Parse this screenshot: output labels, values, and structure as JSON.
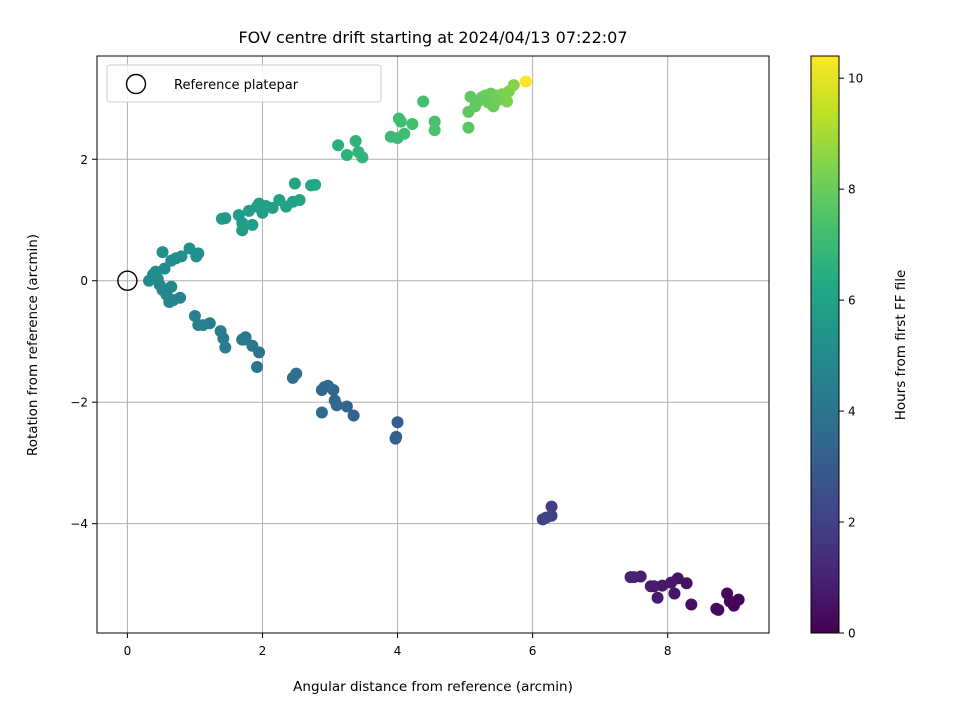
{
  "chart_data": {
    "type": "scatter",
    "title": "FOV centre drift starting at 2024/04/13 07:22:07",
    "xlabel": "Angular distance from reference (arcmin)",
    "ylabel": "Rotation from reference (arcmin)",
    "xlim": [
      -0.45,
      9.5
    ],
    "ylim": [
      -5.8,
      3.7
    ],
    "xticks": [
      0,
      2,
      4,
      6,
      8
    ],
    "yticks": [
      -4,
      -2,
      0,
      2
    ],
    "grid": true,
    "legend": {
      "label": "Reference platepar",
      "placement": "top-left"
    },
    "reference_point": {
      "x": 0,
      "y": 0
    },
    "colorbar": {
      "label": "Hours from first FF file",
      "colormap": "viridis",
      "range": [
        0,
        10.4
      ],
      "ticks": [
        0,
        2,
        4,
        6,
        8,
        10
      ]
    },
    "points": [
      {
        "x": 9.05,
        "y": -5.25,
        "c": 0.05
      },
      {
        "x": 8.98,
        "y": -5.35,
        "c": 0.1
      },
      {
        "x": 8.92,
        "y": -5.28,
        "c": 0.15
      },
      {
        "x": 8.88,
        "y": -5.15,
        "c": 0.2
      },
      {
        "x": 8.75,
        "y": -5.42,
        "c": 0.25
      },
      {
        "x": 8.72,
        "y": -5.4,
        "c": 0.3
      },
      {
        "x": 8.35,
        "y": -5.33,
        "c": 0.4
      },
      {
        "x": 8.28,
        "y": -4.98,
        "c": 0.5
      },
      {
        "x": 8.15,
        "y": -4.9,
        "c": 0.55
      },
      {
        "x": 8.1,
        "y": -5.15,
        "c": 0.6
      },
      {
        "x": 8.05,
        "y": -4.97,
        "c": 0.65
      },
      {
        "x": 7.92,
        "y": -5.02,
        "c": 0.7
      },
      {
        "x": 7.85,
        "y": -5.22,
        "c": 0.75
      },
      {
        "x": 7.8,
        "y": -5.03,
        "c": 0.8
      },
      {
        "x": 7.75,
        "y": -5.03,
        "c": 0.85
      },
      {
        "x": 7.6,
        "y": -4.87,
        "c": 0.9
      },
      {
        "x": 7.5,
        "y": -4.88,
        "c": 0.95
      },
      {
        "x": 7.45,
        "y": -4.88,
        "c": 1.0
      },
      {
        "x": 6.28,
        "y": -3.72,
        "c": 1.9
      },
      {
        "x": 6.28,
        "y": -3.87,
        "c": 1.95
      },
      {
        "x": 6.2,
        "y": -3.9,
        "c": 2.0
      },
      {
        "x": 6.15,
        "y": -3.93,
        "c": 2.05
      },
      {
        "x": 4.0,
        "y": -2.33,
        "c": 3.1
      },
      {
        "x": 3.98,
        "y": -2.57,
        "c": 3.15
      },
      {
        "x": 3.97,
        "y": -2.6,
        "c": 3.2
      },
      {
        "x": 3.35,
        "y": -2.22,
        "c": 3.3
      },
      {
        "x": 3.25,
        "y": -2.07,
        "c": 3.35
      },
      {
        "x": 3.1,
        "y": -2.05,
        "c": 3.4
      },
      {
        "x": 3.05,
        "y": -1.8,
        "c": 3.45
      },
      {
        "x": 3.07,
        "y": -1.97,
        "c": 3.5
      },
      {
        "x": 2.97,
        "y": -1.73,
        "c": 3.55
      },
      {
        "x": 2.92,
        "y": -1.75,
        "c": 3.6
      },
      {
        "x": 2.88,
        "y": -1.8,
        "c": 3.62
      },
      {
        "x": 2.88,
        "y": -2.17,
        "c": 3.65
      },
      {
        "x": 2.5,
        "y": -1.53,
        "c": 3.8
      },
      {
        "x": 2.45,
        "y": -1.6,
        "c": 3.85
      },
      {
        "x": 1.95,
        "y": -1.18,
        "c": 4.0
      },
      {
        "x": 1.92,
        "y": -1.42,
        "c": 4.05
      },
      {
        "x": 1.85,
        "y": -1.07,
        "c": 4.1
      },
      {
        "x": 1.75,
        "y": -0.93,
        "c": 4.15
      },
      {
        "x": 1.72,
        "y": -0.97,
        "c": 4.2
      },
      {
        "x": 1.7,
        "y": -0.97,
        "c": 4.25
      },
      {
        "x": 1.45,
        "y": -1.1,
        "c": 4.3
      },
      {
        "x": 1.42,
        "y": -0.95,
        "c": 4.35
      },
      {
        "x": 1.38,
        "y": -0.83,
        "c": 4.4
      },
      {
        "x": 1.22,
        "y": -0.7,
        "c": 4.45
      },
      {
        "x": 1.12,
        "y": -0.73,
        "c": 4.5
      },
      {
        "x": 1.05,
        "y": -0.73,
        "c": 4.55
      },
      {
        "x": 1.0,
        "y": -0.58,
        "c": 4.6
      },
      {
        "x": 0.78,
        "y": -0.28,
        "c": 4.7
      },
      {
        "x": 0.68,
        "y": -0.32,
        "c": 4.72
      },
      {
        "x": 0.62,
        "y": -0.35,
        "c": 4.75
      },
      {
        "x": 0.65,
        "y": -0.1,
        "c": 4.78
      },
      {
        "x": 0.58,
        "y": -0.23,
        "c": 4.8
      },
      {
        "x": 0.52,
        "y": -0.15,
        "c": 4.82
      },
      {
        "x": 0.48,
        "y": -0.07,
        "c": 4.85
      },
      {
        "x": 0.45,
        "y": 0.03,
        "c": 4.9
      },
      {
        "x": 0.38,
        "y": 0.1,
        "c": 4.92
      },
      {
        "x": 0.32,
        "y": 0.0,
        "c": 4.95
      },
      {
        "x": 0.42,
        "y": 0.15,
        "c": 5.0
      },
      {
        "x": 0.55,
        "y": 0.2,
        "c": 5.05
      },
      {
        "x": 0.65,
        "y": 0.33,
        "c": 5.1
      },
      {
        "x": 0.72,
        "y": 0.37,
        "c": 5.12
      },
      {
        "x": 0.8,
        "y": 0.4,
        "c": 5.15
      },
      {
        "x": 0.52,
        "y": 0.47,
        "c": 5.18
      },
      {
        "x": 0.92,
        "y": 0.53,
        "c": 5.2
      },
      {
        "x": 1.02,
        "y": 0.4,
        "c": 5.22
      },
      {
        "x": 1.05,
        "y": 0.45,
        "c": 5.25
      },
      {
        "x": 1.4,
        "y": 1.02,
        "c": 5.6
      },
      {
        "x": 1.45,
        "y": 1.03,
        "c": 5.62
      },
      {
        "x": 1.65,
        "y": 1.08,
        "c": 5.65
      },
      {
        "x": 1.7,
        "y": 0.83,
        "c": 5.7
      },
      {
        "x": 1.7,
        "y": 0.95,
        "c": 5.72
      },
      {
        "x": 1.85,
        "y": 0.92,
        "c": 5.75
      },
      {
        "x": 1.8,
        "y": 1.15,
        "c": 5.78
      },
      {
        "x": 1.92,
        "y": 1.22,
        "c": 5.8
      },
      {
        "x": 1.95,
        "y": 1.27,
        "c": 5.82
      },
      {
        "x": 2.0,
        "y": 1.12,
        "c": 5.85
      },
      {
        "x": 2.05,
        "y": 1.23,
        "c": 5.88
      },
      {
        "x": 2.15,
        "y": 1.2,
        "c": 5.9
      },
      {
        "x": 2.25,
        "y": 1.33,
        "c": 5.92
      },
      {
        "x": 2.35,
        "y": 1.22,
        "c": 5.95
      },
      {
        "x": 2.45,
        "y": 1.3,
        "c": 5.98
      },
      {
        "x": 2.48,
        "y": 1.6,
        "c": 6.05
      },
      {
        "x": 2.55,
        "y": 1.33,
        "c": 6.1
      },
      {
        "x": 2.72,
        "y": 1.57,
        "c": 6.2
      },
      {
        "x": 2.78,
        "y": 1.58,
        "c": 6.25
      },
      {
        "x": 3.12,
        "y": 2.23,
        "c": 6.6
      },
      {
        "x": 3.25,
        "y": 2.07,
        "c": 6.65
      },
      {
        "x": 3.38,
        "y": 2.3,
        "c": 6.7
      },
      {
        "x": 3.42,
        "y": 2.12,
        "c": 6.72
      },
      {
        "x": 3.48,
        "y": 2.03,
        "c": 6.75
      },
      {
        "x": 3.9,
        "y": 2.37,
        "c": 7.0
      },
      {
        "x": 4.0,
        "y": 2.35,
        "c": 7.05
      },
      {
        "x": 4.02,
        "y": 2.67,
        "c": 7.1
      },
      {
        "x": 4.1,
        "y": 2.42,
        "c": 7.12
      },
      {
        "x": 4.05,
        "y": 2.62,
        "c": 7.15
      },
      {
        "x": 4.22,
        "y": 2.58,
        "c": 7.2
      },
      {
        "x": 4.38,
        "y": 2.95,
        "c": 7.3
      },
      {
        "x": 4.55,
        "y": 2.62,
        "c": 7.35
      },
      {
        "x": 4.55,
        "y": 2.48,
        "c": 7.4
      },
      {
        "x": 5.05,
        "y": 2.52,
        "c": 7.7
      },
      {
        "x": 5.05,
        "y": 2.78,
        "c": 7.75
      },
      {
        "x": 5.08,
        "y": 3.03,
        "c": 7.8
      },
      {
        "x": 5.15,
        "y": 2.87,
        "c": 7.85
      },
      {
        "x": 5.22,
        "y": 2.97,
        "c": 7.9
      },
      {
        "x": 5.25,
        "y": 3.02,
        "c": 7.92
      },
      {
        "x": 5.3,
        "y": 3.05,
        "c": 7.95
      },
      {
        "x": 5.35,
        "y": 2.93,
        "c": 7.98
      },
      {
        "x": 5.38,
        "y": 3.08,
        "c": 8.0
      },
      {
        "x": 5.42,
        "y": 2.87,
        "c": 8.05
      },
      {
        "x": 5.45,
        "y": 3.05,
        "c": 8.1
      },
      {
        "x": 5.5,
        "y": 2.98,
        "c": 8.15
      },
      {
        "x": 5.55,
        "y": 3.07,
        "c": 8.2
      },
      {
        "x": 5.62,
        "y": 2.95,
        "c": 8.3
      },
      {
        "x": 5.65,
        "y": 3.12,
        "c": 8.35
      },
      {
        "x": 5.72,
        "y": 3.22,
        "c": 8.5
      },
      {
        "x": 5.9,
        "y": 3.28,
        "c": 10.4
      }
    ]
  }
}
